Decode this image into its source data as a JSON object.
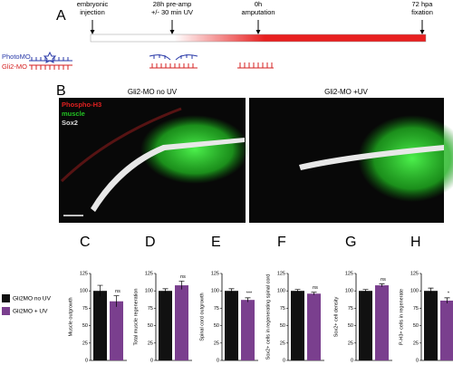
{
  "panel_a": {
    "letter": "A",
    "events": [
      {
        "lines": [
          "embryonic",
          "injection"
        ]
      },
      {
        "lines": [
          "28h pre-amp",
          "+/- 30 min UV"
        ]
      },
      {
        "lines": [
          "0h",
          "amputation"
        ]
      },
      {
        "lines": [
          "72 hpa",
          "fixation"
        ]
      }
    ],
    "constructs": [
      {
        "name": "PhotoMO",
        "color": "#2a3aa8"
      },
      {
        "name": "Gli2-MO",
        "color": "#d42020"
      }
    ]
  },
  "panel_b": {
    "letter": "B",
    "images": [
      {
        "title": "Gli2-MO  no UV"
      },
      {
        "title": "Gli2-MO  +UV"
      }
    ],
    "channels": [
      {
        "name": "Phospho-H3",
        "color": "#e02020"
      },
      {
        "name": "muscle",
        "color": "#22c022"
      },
      {
        "name": "Sox2",
        "color": "#dddddd"
      }
    ]
  },
  "legend": [
    {
      "name": "Gli2MO no UV",
      "color": "#111111"
    },
    {
      "name": "Gli2MO + UV",
      "color": "#7a3f8e"
    }
  ],
  "chart_data": [
    {
      "type": "bar",
      "panel": "C",
      "y_label": "Muscle outgrowth",
      "values": [
        100,
        85
      ],
      "errors": [
        8,
        8
      ],
      "annotation": "ns",
      "ylim": [
        0,
        125
      ],
      "yticks": [
        0,
        25,
        50,
        75,
        100,
        125
      ]
    },
    {
      "type": "bar",
      "panel": "D",
      "y_label": "Total muscle regeneration",
      "values": [
        100,
        108
      ],
      "errors": [
        3,
        6
      ],
      "annotation": "ns",
      "ylim": [
        0,
        125
      ],
      "yticks": [
        0,
        25,
        50,
        75,
        100,
        125
      ]
    },
    {
      "type": "bar",
      "panel": "E",
      "y_label": "Spinal cord outgrowth",
      "values": [
        100,
        87
      ],
      "errors": [
        3,
        3
      ],
      "annotation": "***",
      "ylim": [
        0,
        125
      ],
      "yticks": [
        0,
        25,
        50,
        75,
        100,
        125
      ]
    },
    {
      "type": "bar",
      "panel": "F",
      "y_label": "Sox2+ cells in regenerating spinal cord",
      "values": [
        100,
        96
      ],
      "errors": [
        2,
        2
      ],
      "annotation": "ns",
      "ylim": [
        0,
        125
      ],
      "yticks": [
        0,
        25,
        50,
        75,
        100,
        125
      ]
    },
    {
      "type": "bar",
      "panel": "G",
      "y_label": "Sox2+ cell density",
      "values": [
        100,
        108
      ],
      "errors": [
        2,
        2
      ],
      "annotation": "ns",
      "ylim": [
        0,
        125
      ],
      "yticks": [
        0,
        25,
        50,
        75,
        100,
        125
      ]
    },
    {
      "type": "bar",
      "panel": "H",
      "y_label": "P-H3+ cells in regenerate",
      "values": [
        100,
        86
      ],
      "errors": [
        4,
        4
      ],
      "annotation": "*",
      "ylim": [
        0,
        125
      ],
      "yticks": [
        0,
        25,
        50,
        75,
        100,
        125
      ]
    }
  ]
}
